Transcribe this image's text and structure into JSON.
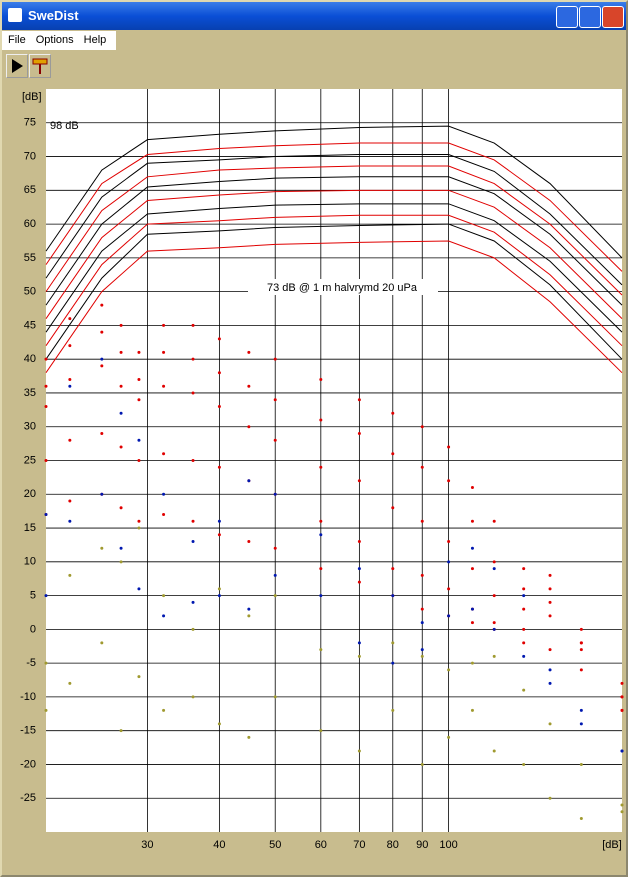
{
  "window": {
    "title": "SweDist",
    "menu": [
      "File",
      "Options",
      "Help"
    ]
  },
  "chart_data": {
    "type": "line",
    "ylabel": "[dB]",
    "xlabel": "[dB]",
    "annotations": [
      "98 dB",
      "73 dB @ 1 m halvrymd 20 uPa"
    ],
    "xlim": [
      20,
      200
    ],
    "xscale": "log",
    "xticks": [
      30,
      40,
      50,
      60,
      70,
      80,
      90,
      100
    ],
    "ylim": [
      -30,
      80
    ],
    "yticks": [
      75,
      70,
      65,
      60,
      55,
      50,
      45,
      40,
      35,
      30,
      25,
      20,
      15,
      10,
      5,
      0,
      -5,
      -10,
      -15,
      -20,
      -25
    ],
    "grid": true,
    "series": [
      {
        "mode": "line",
        "color": "#000000",
        "x": [
          20,
          25,
          30,
          40,
          50,
          70,
          100,
          120,
          150,
          200
        ],
        "values": [
          56,
          68,
          72.5,
          73.3,
          73.8,
          74.3,
          74.5,
          72,
          66,
          55
        ]
      },
      {
        "mode": "line",
        "color": "#e00000",
        "x": [
          20,
          25,
          30,
          40,
          50,
          70,
          100,
          120,
          150,
          200
        ],
        "values": [
          54,
          66,
          70.3,
          71.2,
          71.6,
          72,
          72,
          69.5,
          63.5,
          53
        ]
      },
      {
        "mode": "line",
        "color": "#000000",
        "x": [
          20,
          25,
          30,
          40,
          50,
          70,
          100,
          120,
          150,
          200
        ],
        "values": [
          52,
          64,
          69,
          69.5,
          70,
          70.3,
          70.3,
          67.8,
          61.5,
          51
        ]
      },
      {
        "mode": "line",
        "color": "#e00000",
        "x": [
          20,
          25,
          30,
          40,
          50,
          70,
          100,
          120,
          150,
          200
        ],
        "values": [
          50,
          62,
          67,
          68,
          68.3,
          68.6,
          68.6,
          66,
          60,
          49.5
        ]
      },
      {
        "mode": "line",
        "color": "#000000",
        "x": [
          20,
          25,
          30,
          40,
          50,
          70,
          100,
          120,
          150,
          200
        ],
        "values": [
          48,
          60,
          65.5,
          66.3,
          66.8,
          67,
          67,
          64.5,
          58.5,
          48
        ]
      },
      {
        "mode": "line",
        "color": "#e00000",
        "x": [
          20,
          25,
          30,
          40,
          50,
          70,
          100,
          120,
          150,
          200
        ],
        "values": [
          46,
          58,
          63.5,
          64.3,
          64.8,
          65,
          65,
          62.5,
          56.5,
          46
        ]
      },
      {
        "mode": "line",
        "color": "#000000",
        "x": [
          20,
          25,
          30,
          40,
          50,
          70,
          100,
          120,
          150,
          200
        ],
        "values": [
          44,
          56,
          61.5,
          62.3,
          62.8,
          63,
          63,
          60.5,
          54.5,
          44
        ]
      },
      {
        "mode": "line",
        "color": "#e00000",
        "x": [
          20,
          25,
          30,
          40,
          50,
          70,
          100,
          120,
          150,
          200
        ],
        "values": [
          42,
          54,
          60,
          60.5,
          61,
          61.3,
          61.3,
          58.8,
          52.5,
          42
        ]
      },
      {
        "mode": "line",
        "color": "#000000",
        "x": [
          20,
          25,
          30,
          40,
          50,
          70,
          100,
          120,
          150,
          200
        ],
        "values": [
          40,
          52,
          58.5,
          59,
          59.5,
          59.8,
          60,
          57.5,
          51,
          40
        ]
      },
      {
        "mode": "line",
        "color": "#e00000",
        "x": [
          20,
          25,
          30,
          40,
          50,
          70,
          100,
          120,
          150,
          200
        ],
        "values": [
          38,
          50,
          56,
          56.5,
          57,
          57.3,
          57.5,
          55,
          48.5,
          38
        ]
      },
      {
        "mode": "dots",
        "color": "#e00000",
        "x": [
          20,
          22,
          25,
          27,
          29,
          32,
          36,
          40,
          45,
          50,
          60,
          70,
          80,
          90,
          100,
          110,
          120,
          135,
          150,
          170,
          200
        ],
        "values": [
          40,
          46,
          48,
          45,
          41,
          45,
          45,
          43,
          41,
          40,
          37,
          34,
          32,
          30,
          27,
          21,
          16,
          9,
          4,
          -2,
          -8
        ]
      },
      {
        "mode": "dots",
        "color": "#e00000",
        "x": [
          20,
          22,
          25,
          27,
          29,
          32,
          36,
          40,
          45,
          50,
          60,
          70,
          80,
          90,
          100,
          110,
          120,
          135,
          150,
          170,
          200
        ],
        "values": [
          36,
          42,
          44,
          41,
          37,
          41,
          40,
          38,
          36,
          34,
          31,
          29,
          26,
          24,
          22,
          16,
          10,
          6,
          8,
          0,
          -10
        ]
      },
      {
        "mode": "dots",
        "color": "#e00000",
        "x": [
          20,
          22,
          25,
          27,
          29,
          32,
          36,
          40,
          45,
          50,
          60,
          70,
          80,
          90,
          100,
          110,
          120,
          135,
          150,
          170,
          200
        ],
        "values": [
          33,
          37,
          39,
          36,
          34,
          36,
          35,
          33,
          30,
          28,
          24,
          22,
          18,
          16,
          13,
          9,
          5,
          3,
          6,
          -2,
          -12
        ]
      },
      {
        "mode": "dots",
        "color": "#e00000",
        "x": [
          20,
          22,
          25,
          27,
          29,
          32,
          36,
          40,
          45,
          50,
          60,
          70,
          80,
          90,
          100,
          110,
          120,
          135,
          150,
          170,
          200
        ],
        "values": [
          25,
          28,
          29,
          27,
          25,
          26,
          25,
          24,
          22,
          20,
          16,
          13,
          9,
          8,
          6,
          3,
          1,
          0,
          2,
          -3,
          -12
        ]
      },
      {
        "mode": "dots",
        "color": "#e00000",
        "x": [
          20,
          22,
          25,
          27,
          29,
          32,
          36,
          40,
          45,
          50,
          60,
          70,
          80,
          90,
          100,
          110,
          120,
          135,
          150,
          170,
          200
        ],
        "values": [
          17,
          19,
          20,
          18,
          16,
          17,
          16,
          14,
          13,
          12,
          9,
          7,
          5,
          3,
          2,
          1,
          0,
          -2,
          -3,
          -6,
          -10
        ]
      },
      {
        "mode": "dots",
        "color": "#0018b0",
        "x": [
          20,
          22,
          25,
          27,
          29,
          32,
          36,
          40,
          45,
          50,
          60,
          70,
          80,
          90,
          100,
          110,
          120,
          135,
          150,
          170,
          200
        ],
        "values": [
          17,
          36,
          40,
          32,
          28,
          20,
          13,
          16,
          22,
          20,
          14,
          9,
          5,
          1,
          10,
          12,
          9,
          5,
          -6,
          -12,
          -18
        ]
      },
      {
        "mode": "dots",
        "color": "#0018b0",
        "x": [
          20,
          22,
          25,
          27,
          29,
          32,
          36,
          40,
          45,
          50,
          60,
          70,
          80,
          90,
          100,
          110,
          120,
          135,
          150,
          170,
          200
        ],
        "values": [
          5,
          16,
          20,
          12,
          6,
          2,
          4,
          5,
          3,
          8,
          5,
          -2,
          -5,
          -3,
          2,
          3,
          0,
          -4,
          -8,
          -14,
          -18
        ]
      },
      {
        "mode": "dots",
        "color": "#a09a30",
        "x": [
          20,
          22,
          25,
          27,
          29,
          32,
          36,
          40,
          45,
          50,
          60,
          70,
          80,
          90,
          100,
          110,
          120,
          135,
          150,
          170,
          200
        ],
        "values": [
          -12,
          8,
          12,
          10,
          15,
          5,
          0,
          6,
          2,
          5,
          -3,
          -4,
          -2,
          -4,
          -6,
          -5,
          -4,
          -9,
          -14,
          -20,
          -26
        ]
      },
      {
        "mode": "dots",
        "color": "#a09a30",
        "x": [
          20,
          22,
          25,
          27,
          29,
          32,
          36,
          40,
          45,
          50,
          60,
          70,
          80,
          90,
          100,
          110,
          120,
          135,
          150,
          170,
          200
        ],
        "values": [
          -5,
          -8,
          -2,
          -15,
          -7,
          -12,
          -10,
          -14,
          -16,
          -10,
          -15,
          -18,
          -12,
          -20,
          -16,
          -12,
          -18,
          -20,
          -25,
          -28,
          -27
        ]
      }
    ]
  }
}
